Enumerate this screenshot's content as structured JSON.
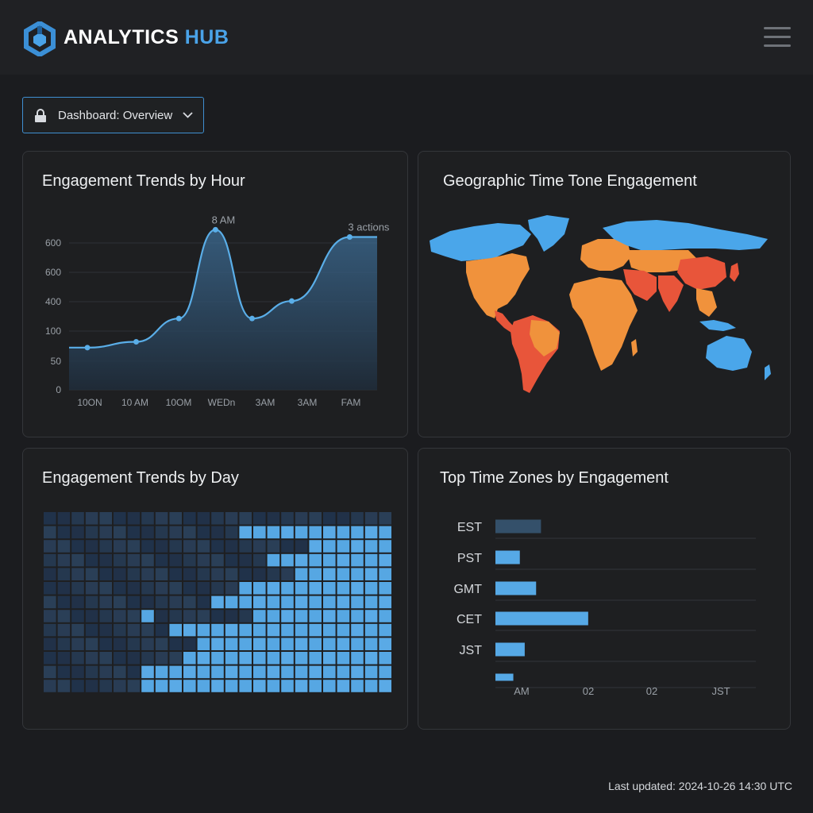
{
  "header": {
    "brand_main": "ANALYTICS",
    "brand_accent": "HUB",
    "logo_icon": "hexagon-logo-icon",
    "menu_icon": "hamburger-menu-icon"
  },
  "dashboard_select": {
    "value": "Dashboard: Overview",
    "icon": "lock-icon",
    "chevron": "chevron-down-icon"
  },
  "panels": {
    "hourly": {
      "title": "Engagement Trends by Hour"
    },
    "geo": {
      "title": "Geographic Time Tone Engagement"
    },
    "daily": {
      "title": "Engagement Trends by Day"
    },
    "timezones": {
      "title": "Top Time Zones by Engagement"
    }
  },
  "colors": {
    "accent": "#4aa3e8",
    "line": "#5aaee8",
    "heat_low": "#213248",
    "heat_high": "#56a7e3",
    "map_high": "#e8553a",
    "map_mid": "#f0923c",
    "map_low": "#4aa6ea"
  },
  "chart_data": [
    {
      "type": "area",
      "title": "Engagement Trends by Hour",
      "categories": [
        "10ON",
        "10 AM",
        "10OM",
        "WEDn",
        "3AM",
        "3AM",
        "FAM"
      ],
      "y_ticks": [
        "0",
        "50",
        "100",
        "400",
        "600",
        "600"
      ],
      "points": [
        {
          "x": 0.0,
          "y": 1.45
        },
        {
          "x": 0.3,
          "y": 1.45
        },
        {
          "x": 1.1,
          "y": 1.65
        },
        {
          "x": 1.8,
          "y": 2.45
        },
        {
          "x": 2.4,
          "y": 5.5
        },
        {
          "x": 3.0,
          "y": 2.45
        },
        {
          "x": 3.65,
          "y": 3.05
        },
        {
          "x": 4.6,
          "y": 5.25
        },
        {
          "x": 5.05,
          "y": 5.25
        }
      ],
      "markers": [
        1,
        2,
        3,
        4,
        5,
        6,
        7
      ],
      "annotations": [
        {
          "text": "8 AM",
          "point": 4
        },
        {
          "text": "3 actions",
          "point": 7
        }
      ],
      "grid": true
    },
    {
      "type": "heatmap",
      "title": "Engagement Trends by Day",
      "rows": 13,
      "cols": 25,
      "row_starts": [
        25,
        14,
        19,
        16,
        18,
        14,
        12,
        15,
        9,
        11,
        10,
        7,
        7
      ],
      "isolated_cells": [
        [
          1,
          14
        ],
        [
          7,
          7
        ]
      ]
    },
    {
      "type": "bar",
      "title": "Top Time Zones by Engagement",
      "orientation": "horizontal",
      "categories": [
        "EST",
        "PST",
        "GMT",
        "CET",
        "JST",
        ""
      ],
      "values": [
        1.4,
        0.75,
        1.25,
        2.85,
        0.9,
        0.55
      ],
      "highlight_index": 0,
      "x_ticks": [
        "AM",
        "02",
        "02",
        "JST"
      ],
      "grid": true
    }
  ],
  "footer": {
    "updated": "Last updated: 2024-10-26 14:30 UTC"
  }
}
